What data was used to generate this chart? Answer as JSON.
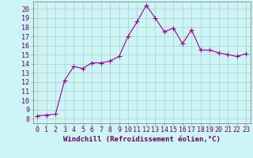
{
  "x": [
    0,
    1,
    2,
    3,
    4,
    5,
    6,
    7,
    8,
    9,
    10,
    11,
    12,
    13,
    14,
    15,
    16,
    17,
    18,
    19,
    20,
    21,
    22,
    23
  ],
  "y": [
    8.3,
    8.4,
    8.5,
    12.2,
    13.7,
    13.5,
    14.1,
    14.1,
    14.3,
    14.8,
    17.0,
    18.6,
    20.4,
    19.0,
    17.5,
    17.9,
    16.2,
    17.7,
    15.5,
    15.5,
    15.2,
    15.0,
    14.8,
    15.1
  ],
  "line_color": "#990099",
  "marker": "+",
  "marker_size": 4,
  "bg_color": "#cef5f5",
  "grid_color": "#aacccc",
  "xlabel": "Windchill (Refroidissement éolien,°C)",
  "ylabel_ticks": [
    8,
    9,
    10,
    11,
    12,
    13,
    14,
    15,
    16,
    17,
    18,
    19,
    20
  ],
  "xlim": [
    -0.5,
    23.5
  ],
  "ylim": [
    7.5,
    20.8
  ],
  "xlabel_fontsize": 6.5,
  "tick_fontsize": 6.0,
  "xlabel_color": "#660066",
  "tick_color": "#660066"
}
